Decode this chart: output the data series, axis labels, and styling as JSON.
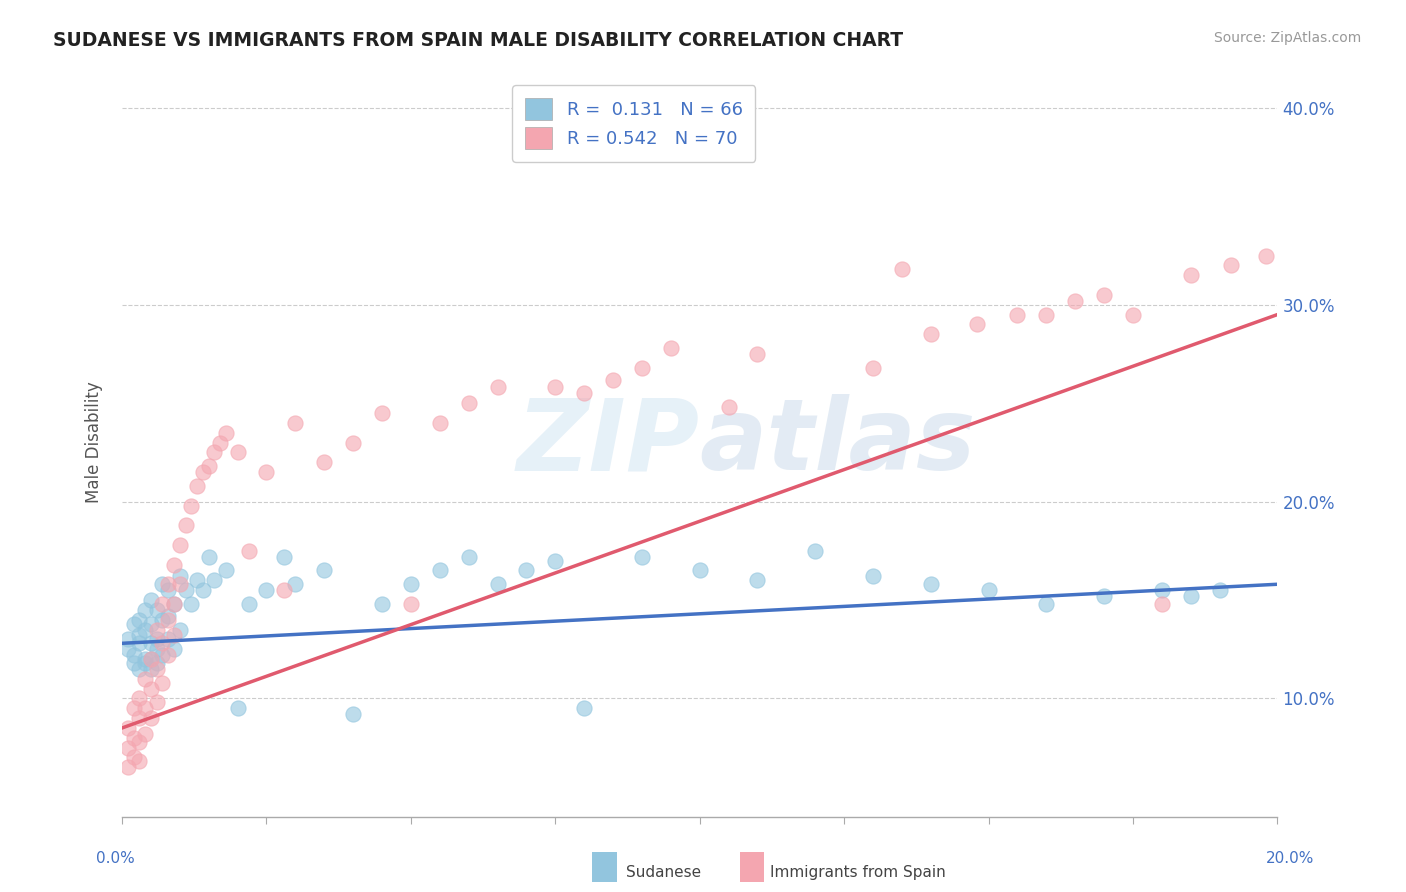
{
  "title": "SUDANESE VS IMMIGRANTS FROM SPAIN MALE DISABILITY CORRELATION CHART",
  "source": "Source: ZipAtlas.com",
  "ylabel": "Male Disability",
  "legend_bottom": [
    "Sudanese",
    "Immigrants from Spain"
  ],
  "r_sudanese": 0.131,
  "n_sudanese": 66,
  "r_spain": 0.542,
  "n_spain": 70,
  "xlim": [
    0.0,
    0.2
  ],
  "ylim": [
    0.04,
    0.42
  ],
  "yticks": [
    0.1,
    0.2,
    0.3,
    0.4
  ],
  "color_sudanese": "#92c5de",
  "color_spain": "#f4a6b0",
  "trendline_sudanese": "#4472c4",
  "trendline_spain": "#e05a6e",
  "background_color": "#ffffff",
  "watermark": "ZIPatlas",
  "sudanese_x": [
    0.001,
    0.001,
    0.002,
    0.002,
    0.002,
    0.003,
    0.003,
    0.003,
    0.003,
    0.004,
    0.004,
    0.004,
    0.004,
    0.005,
    0.005,
    0.005,
    0.005,
    0.005,
    0.006,
    0.006,
    0.006,
    0.006,
    0.007,
    0.007,
    0.007,
    0.008,
    0.008,
    0.008,
    0.009,
    0.009,
    0.01,
    0.01,
    0.011,
    0.012,
    0.013,
    0.014,
    0.015,
    0.016,
    0.018,
    0.02,
    0.022,
    0.025,
    0.028,
    0.03,
    0.035,
    0.04,
    0.045,
    0.05,
    0.055,
    0.06,
    0.065,
    0.07,
    0.075,
    0.08,
    0.09,
    0.1,
    0.11,
    0.12,
    0.13,
    0.14,
    0.15,
    0.16,
    0.17,
    0.18,
    0.185,
    0.19
  ],
  "sudanese_y": [
    0.13,
    0.125,
    0.138,
    0.122,
    0.118,
    0.14,
    0.128,
    0.115,
    0.132,
    0.145,
    0.12,
    0.135,
    0.118,
    0.15,
    0.128,
    0.12,
    0.115,
    0.138,
    0.145,
    0.13,
    0.125,
    0.118,
    0.158,
    0.14,
    0.122,
    0.155,
    0.142,
    0.13,
    0.148,
    0.125,
    0.162,
    0.135,
    0.155,
    0.148,
    0.16,
    0.155,
    0.172,
    0.16,
    0.165,
    0.095,
    0.148,
    0.155,
    0.172,
    0.158,
    0.165,
    0.092,
    0.148,
    0.158,
    0.165,
    0.172,
    0.158,
    0.165,
    0.17,
    0.095,
    0.172,
    0.165,
    0.16,
    0.175,
    0.162,
    0.158,
    0.155,
    0.148,
    0.152,
    0.155,
    0.152,
    0.155
  ],
  "spain_x": [
    0.001,
    0.001,
    0.001,
    0.002,
    0.002,
    0.002,
    0.003,
    0.003,
    0.003,
    0.003,
    0.004,
    0.004,
    0.004,
    0.005,
    0.005,
    0.005,
    0.006,
    0.006,
    0.006,
    0.007,
    0.007,
    0.007,
    0.008,
    0.008,
    0.008,
    0.009,
    0.009,
    0.009,
    0.01,
    0.01,
    0.011,
    0.012,
    0.013,
    0.014,
    0.015,
    0.016,
    0.017,
    0.018,
    0.02,
    0.022,
    0.025,
    0.028,
    0.03,
    0.035,
    0.04,
    0.045,
    0.05,
    0.055,
    0.06,
    0.065,
    0.075,
    0.08,
    0.085,
    0.09,
    0.095,
    0.105,
    0.11,
    0.13,
    0.135,
    0.14,
    0.148,
    0.155,
    0.16,
    0.165,
    0.17,
    0.175,
    0.18,
    0.185,
    0.192,
    0.198
  ],
  "spain_y": [
    0.085,
    0.075,
    0.065,
    0.095,
    0.08,
    0.07,
    0.1,
    0.09,
    0.078,
    0.068,
    0.11,
    0.095,
    0.082,
    0.12,
    0.105,
    0.09,
    0.135,
    0.115,
    0.098,
    0.148,
    0.128,
    0.108,
    0.158,
    0.14,
    0.122,
    0.168,
    0.148,
    0.132,
    0.178,
    0.158,
    0.188,
    0.198,
    0.208,
    0.215,
    0.218,
    0.225,
    0.23,
    0.235,
    0.225,
    0.175,
    0.215,
    0.155,
    0.24,
    0.22,
    0.23,
    0.245,
    0.148,
    0.24,
    0.25,
    0.258,
    0.258,
    0.255,
    0.262,
    0.268,
    0.278,
    0.248,
    0.275,
    0.268,
    0.318,
    0.285,
    0.29,
    0.295,
    0.295,
    0.302,
    0.305,
    0.295,
    0.148,
    0.315,
    0.32,
    0.325
  ],
  "trendline_s_x0": 0.0,
  "trendline_s_y0": 0.128,
  "trendline_s_x1": 0.2,
  "trendline_s_y1": 0.158,
  "trendline_p_x0": 0.0,
  "trendline_p_y0": 0.085,
  "trendline_p_x1": 0.2,
  "trendline_p_y1": 0.295
}
